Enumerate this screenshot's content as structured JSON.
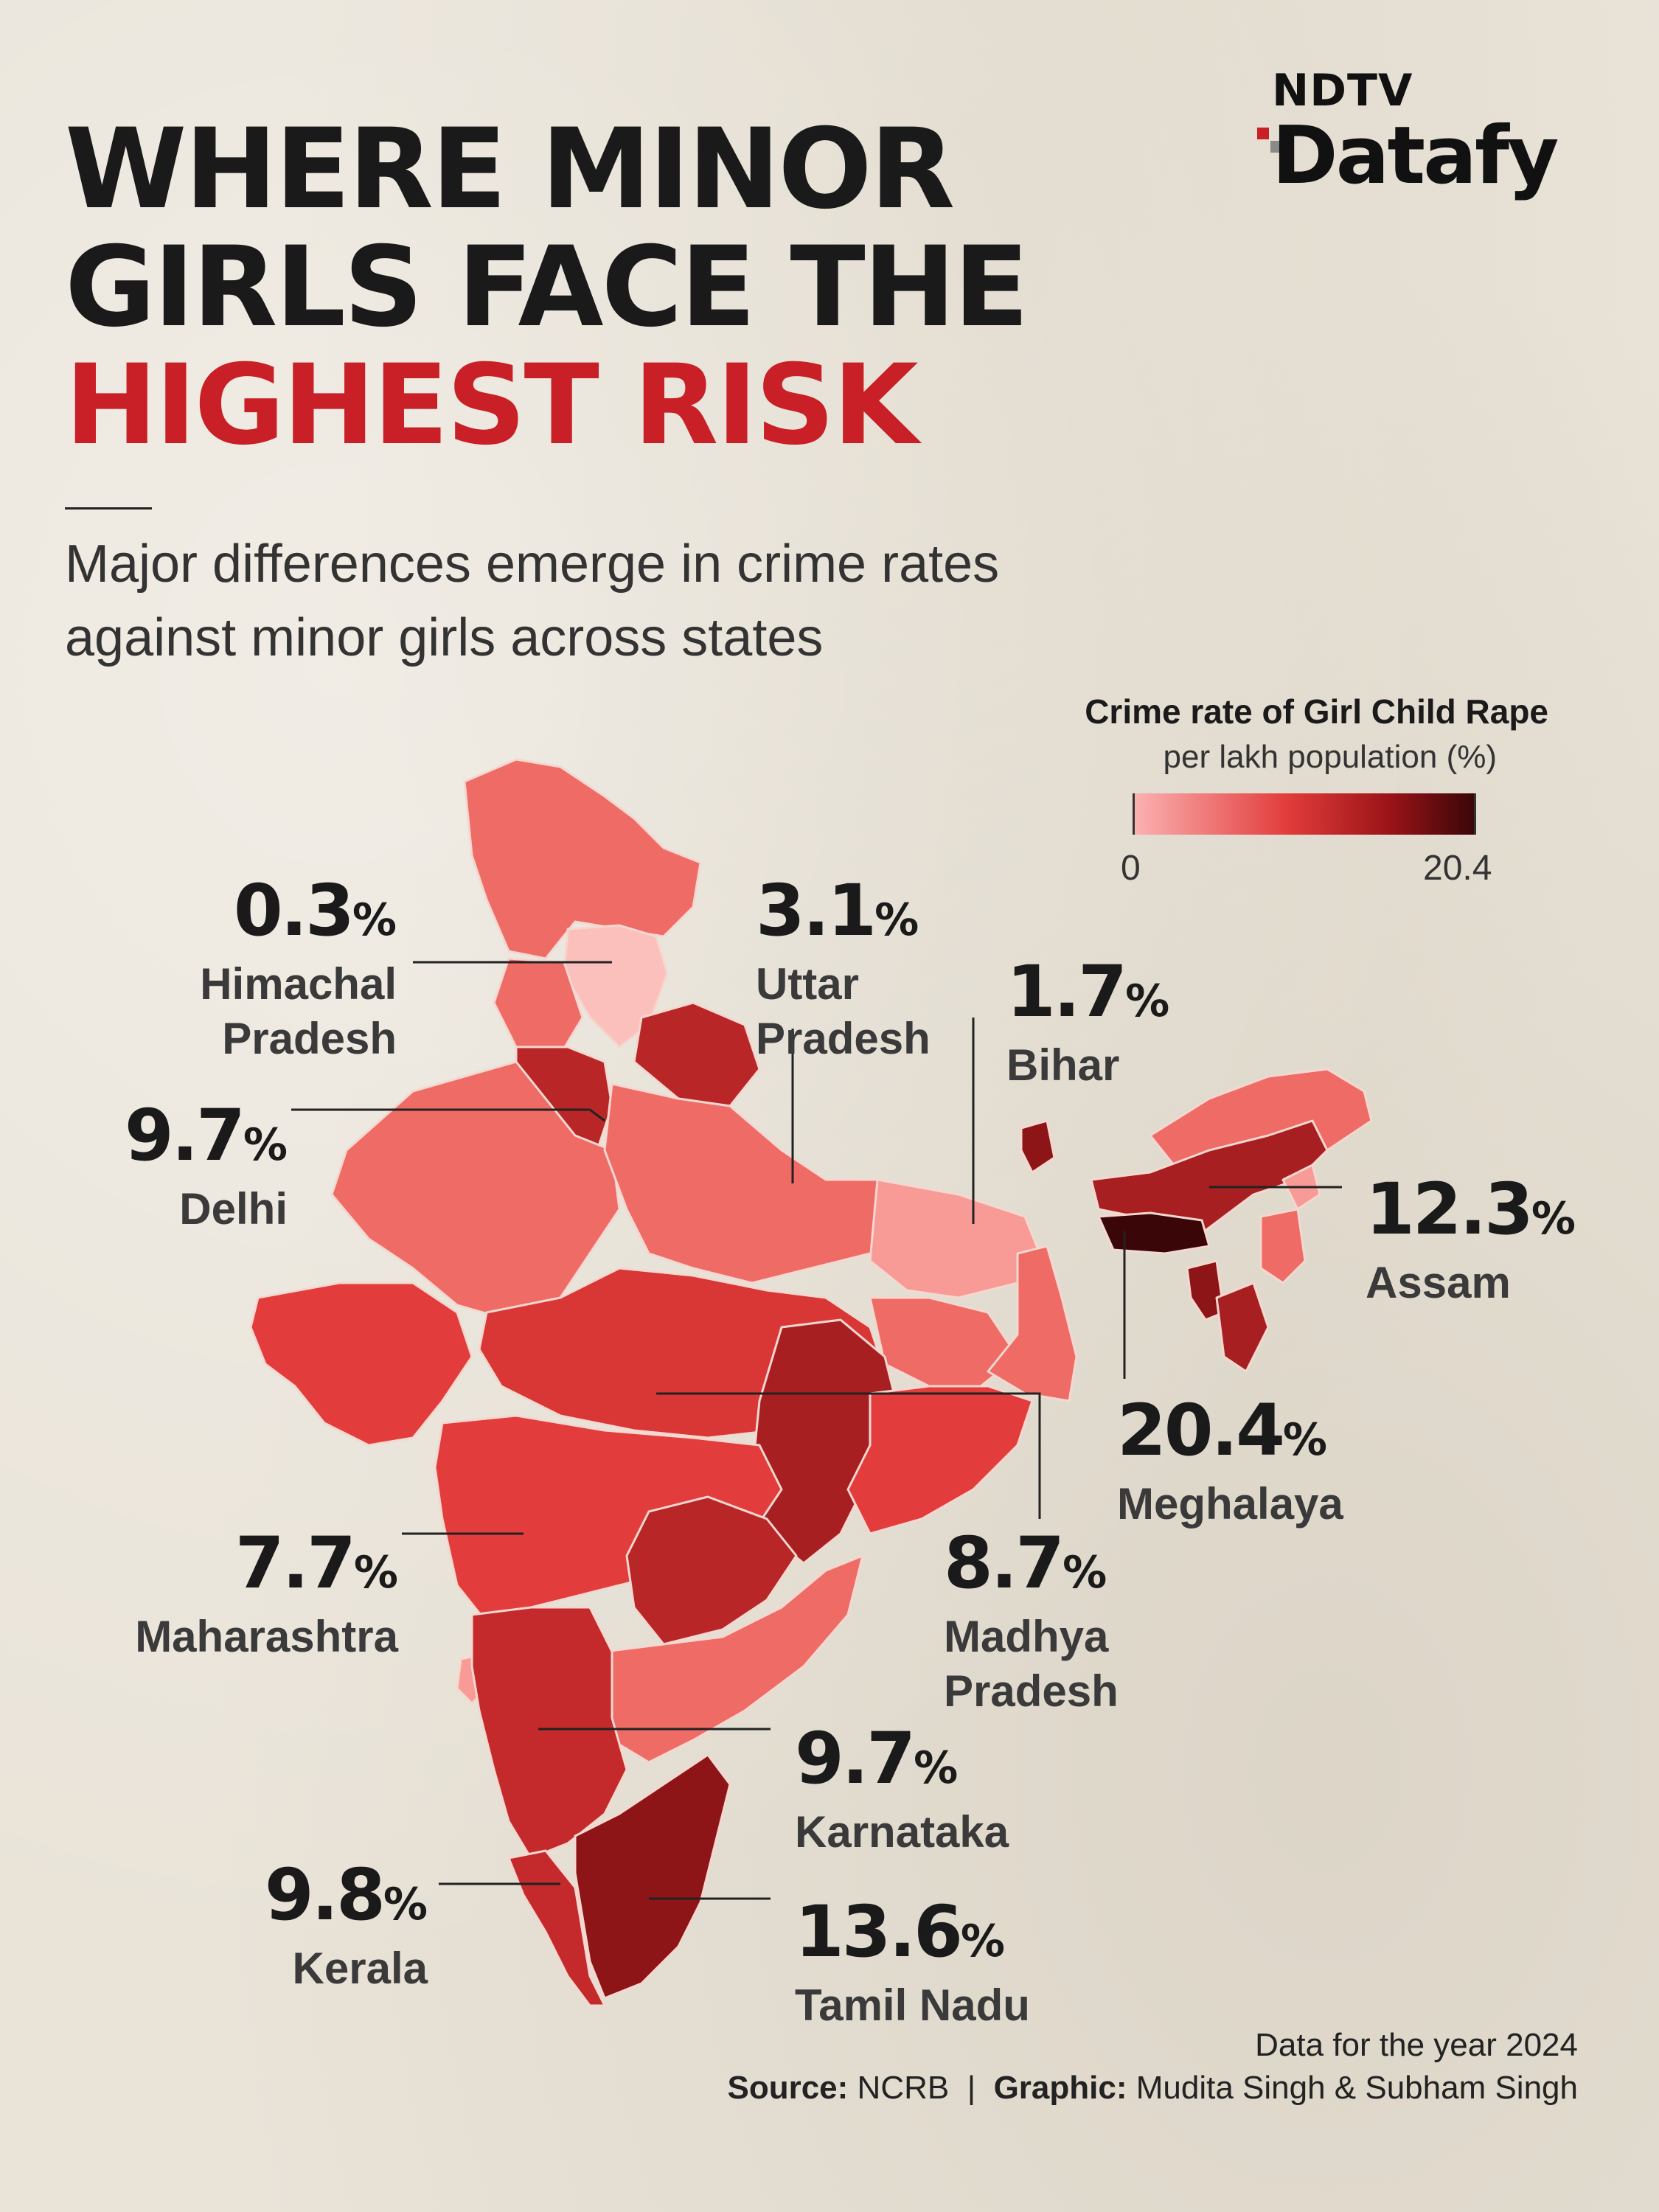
{
  "brand": {
    "top": "NDTV",
    "main": "Datafy"
  },
  "headline": {
    "line1": "WHERE MINOR",
    "line2": "GIRLS FACE THE",
    "line3": "HIGHEST RISK"
  },
  "subtitle": {
    "line1": "Major differences emerge in crime rates",
    "line2": "against minor girls across states"
  },
  "legend": {
    "title": "Crime rate of Girl Child Rape",
    "subtitle": "per lakh population (%)",
    "min": "0",
    "max": "20.4",
    "colors": [
      "#fbb1b1",
      "#e23c3c",
      "#9a1417",
      "#3a0608"
    ]
  },
  "callouts": [
    {
      "value": "0.3",
      "unit": "%",
      "name": "Himachal\nPradesh"
    },
    {
      "value": "3.1",
      "unit": "%",
      "name": "Uttar\nPradesh"
    },
    {
      "value": "1.7",
      "unit": "%",
      "name": "Bihar"
    },
    {
      "value": "9.7",
      "unit": "%",
      "name": "Delhi"
    },
    {
      "value": "12.3",
      "unit": "%",
      "name": "Assam"
    },
    {
      "value": "20.4",
      "unit": "%",
      "name": "Meghalaya"
    },
    {
      "value": "7.7",
      "unit": "%",
      "name": "Maharashtra"
    },
    {
      "value": "8.7",
      "unit": "%",
      "name": "Madhya\nPradesh"
    },
    {
      "value": "9.7",
      "unit": "%",
      "name": "Karnataka"
    },
    {
      "value": "9.8",
      "unit": "%",
      "name": "Kerala"
    },
    {
      "value": "13.6",
      "unit": "%",
      "name": "Tamil Nadu"
    }
  ],
  "footer": {
    "year_note": "Data for the year 2024",
    "source_label": "Source:",
    "source": "NCRB",
    "separator": "|",
    "graphic_label": "Graphic:",
    "graphic": "Mudita Singh & Subham Singh"
  }
}
